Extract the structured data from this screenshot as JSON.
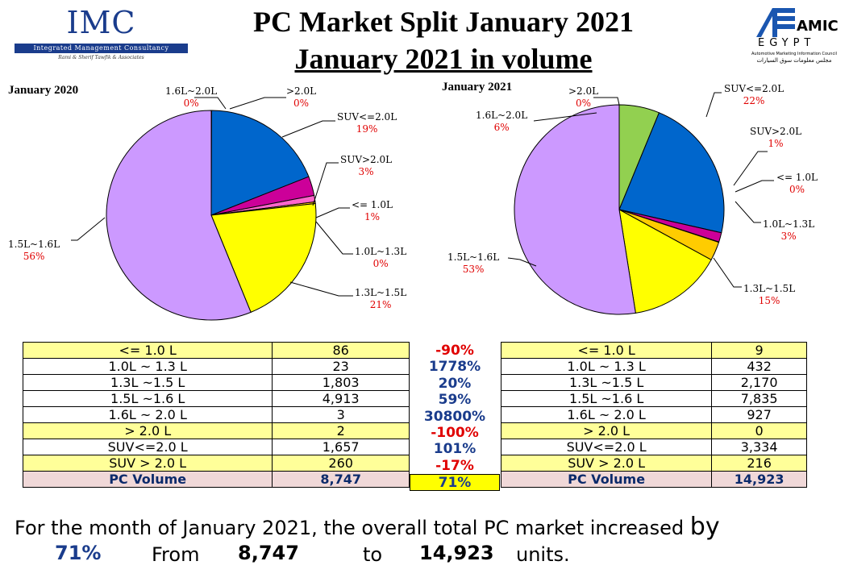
{
  "logo_left": {
    "title": "IMC",
    "subtitle": "Integrated Management Consultancy",
    "tagline": "Rami & Sherif Tawfik & Associates"
  },
  "logo_right": {
    "line1": "AMIC",
    "line2": "EGYPT",
    "line3": "Automotive Marketing Information Council",
    "line4": "مجلس معلومات سوق السيارات"
  },
  "title": {
    "line1": "PC Market Split January 2021",
    "line2": "January 2021 in volume"
  },
  "colors": {
    "purple": "#cc99ff",
    "blue": "#0066cc",
    "magenta": "#cc0099",
    "orange": "#ffcc00",
    "yellow": "#ffff00",
    "green": "#92d050",
    "label_red": "#e00000"
  },
  "chart_data": [
    {
      "type": "pie",
      "title": "January 2020",
      "slices": [
        {
          "label": "1.6L~2.0L",
          "pct": "0%",
          "value": 3,
          "color": "#92d050"
        },
        {
          "label": ">2.0L",
          "pct": "0%",
          "value": 2,
          "color": "#ff9900"
        },
        {
          "label": "SUV<=2.0L",
          "pct": "19%",
          "value": 1657,
          "color": "#0066cc"
        },
        {
          "label": "SUV>2.0L",
          "pct": "3%",
          "value": 260,
          "color": "#cc0099"
        },
        {
          "label": "<= 1.0L",
          "pct": "1%",
          "value": 86,
          "color": "#ff66cc"
        },
        {
          "label": "1.0L~1.3L",
          "pct": "0%",
          "value": 23,
          "color": "#ffcc00"
        },
        {
          "label": "1.3L~1.5L",
          "pct": "21%",
          "value": 1803,
          "color": "#ffff00"
        },
        {
          "label": "1.5L~1.6L",
          "pct": "56%",
          "value": 4913,
          "color": "#cc99ff"
        }
      ]
    },
    {
      "type": "pie",
      "title": "January 2021",
      "slices": [
        {
          "label": "1.6L~2.0L",
          "pct": "6%",
          "value": 927,
          "color": "#92d050"
        },
        {
          "label": ">2.0L",
          "pct": "0%",
          "value": 0,
          "color": "#ff9900"
        },
        {
          "label": "SUV<=2.0L",
          "pct": "22%",
          "value": 3334,
          "color": "#0066cc"
        },
        {
          "label": "SUV>2.0L",
          "pct": "1%",
          "value": 216,
          "color": "#cc0099"
        },
        {
          "label": "<= 1.0L",
          "pct": "0%",
          "value": 9,
          "color": "#ff66cc"
        },
        {
          "label": "1.0L~1.3L",
          "pct": "3%",
          "value": 432,
          "color": "#ffcc00"
        },
        {
          "label": "1.3L~1.5L",
          "pct": "15%",
          "value": 2170,
          "color": "#ffff00"
        },
        {
          "label": "1.5L~1.6L",
          "pct": "53%",
          "value": 7835,
          "color": "#cc99ff"
        }
      ]
    }
  ],
  "table_left": [
    {
      "seg": "<= 1.0 L",
      "val": "86"
    },
    {
      "seg": "1.0L ~ 1.3 L",
      "val": "23"
    },
    {
      "seg": "1.3L ~1.5 L",
      "val": "1,803"
    },
    {
      "seg": "1.5L ~1.6 L",
      "val": "4,913"
    },
    {
      "seg": "1.6L ~ 2.0 L",
      "val": "3"
    },
    {
      "seg": "> 2.0 L",
      "val": "2"
    },
    {
      "seg": "SUV<=2.0 L",
      "val": "1,657"
    },
    {
      "seg": "SUV > 2.0 L",
      "val": "260"
    },
    {
      "seg": "PC Volume",
      "val": "8,747"
    }
  ],
  "table_right": [
    {
      "seg": "<= 1.0 L",
      "val": "9"
    },
    {
      "seg": "1.0L ~ 1.3 L",
      "val": "432"
    },
    {
      "seg": "1.3L ~1.5 L",
      "val": "2,170"
    },
    {
      "seg": "1.5L ~1.6 L",
      "val": "7,835"
    },
    {
      "seg": "1.6L ~ 2.0 L",
      "val": "927"
    },
    {
      "seg": "> 2.0 L",
      "val": "0"
    },
    {
      "seg": "SUV<=2.0 L",
      "val": "3,334"
    },
    {
      "seg": "SUV > 2.0 L",
      "val": "216"
    },
    {
      "seg": "PC Volume",
      "val": "14,923"
    }
  ],
  "changes": [
    "-90%",
    "1778%",
    "20%",
    "59%",
    "30800%",
    "-100%",
    "101%",
    "-17%",
    "71%"
  ],
  "summary": {
    "line1_a": "For the month of January 2021,  the overall total PC market increased",
    "line1_b": "by",
    "pct": "71%",
    "from_label": "From",
    "from_val": "8,747",
    "to_label": "to",
    "to_val": "14,923",
    "units": "units."
  }
}
